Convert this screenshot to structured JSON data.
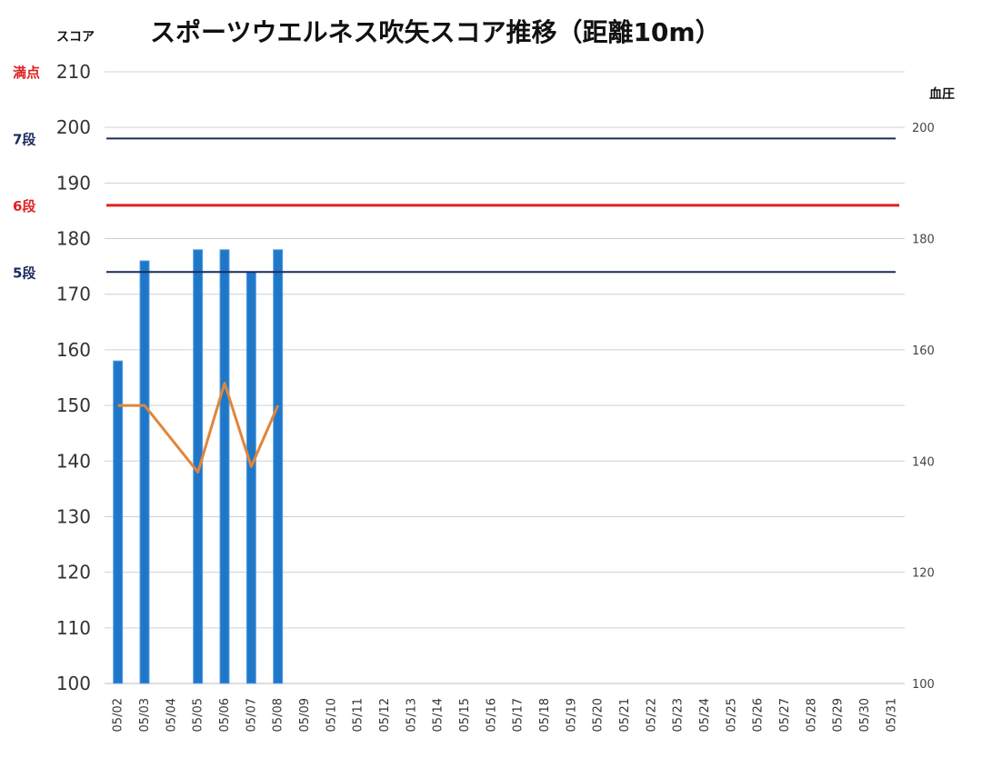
{
  "chart_data": {
    "type": "bar",
    "title": "スポーツウエルネス吹矢スコア推移（距離10m）",
    "ylabel_left": "スコア",
    "ylabel_right": "血圧",
    "ylim_left": [
      100,
      210
    ],
    "yticks_left": [
      100,
      110,
      120,
      130,
      140,
      150,
      160,
      170,
      180,
      190,
      200,
      210
    ],
    "ylim_right": [
      100,
      210
    ],
    "yticks_right": [
      100,
      120,
      140,
      160,
      180,
      200
    ],
    "grid": true,
    "categories": [
      "05/02",
      "05/03",
      "05/04",
      "05/05",
      "05/06",
      "05/07",
      "05/08",
      "05/09",
      "05/10",
      "05/11",
      "05/12",
      "05/13",
      "05/14",
      "05/15",
      "05/16",
      "05/17",
      "05/18",
      "05/19",
      "05/20",
      "05/21",
      "05/22",
      "05/23",
      "05/24",
      "05/25",
      "05/26",
      "05/27",
      "05/28",
      "05/29",
      "05/30",
      "05/31"
    ],
    "series": [
      {
        "type": "bar",
        "axis": "left",
        "color": "#1f77c9",
        "values": [
          158,
          176,
          null,
          178,
          178,
          174,
          178,
          null,
          null,
          null,
          null,
          null,
          null,
          null,
          null,
          null,
          null,
          null,
          null,
          null,
          null,
          null,
          null,
          null,
          null,
          null,
          null,
          null,
          null,
          null
        ]
      },
      {
        "type": "line",
        "axis": "right",
        "color": "#e0863a",
        "values": [
          150,
          150,
          null,
          138,
          154,
          139,
          150,
          null,
          null,
          null,
          null,
          null,
          null,
          null,
          null,
          null,
          null,
          null,
          null,
          null,
          null,
          null,
          null,
          null,
          null,
          null,
          null,
          null,
          null,
          null
        ]
      }
    ],
    "reference_lines": [
      {
        "label": "満点",
        "value": 210,
        "color": "#e02020",
        "line": false
      },
      {
        "label": "7段",
        "value": 198,
        "color": "#1a2a5e",
        "line": true
      },
      {
        "label": "6段",
        "value": 186,
        "color": "#e02020",
        "line": true
      },
      {
        "label": "5段",
        "value": 174,
        "color": "#1a2a5e",
        "line": true
      }
    ]
  }
}
